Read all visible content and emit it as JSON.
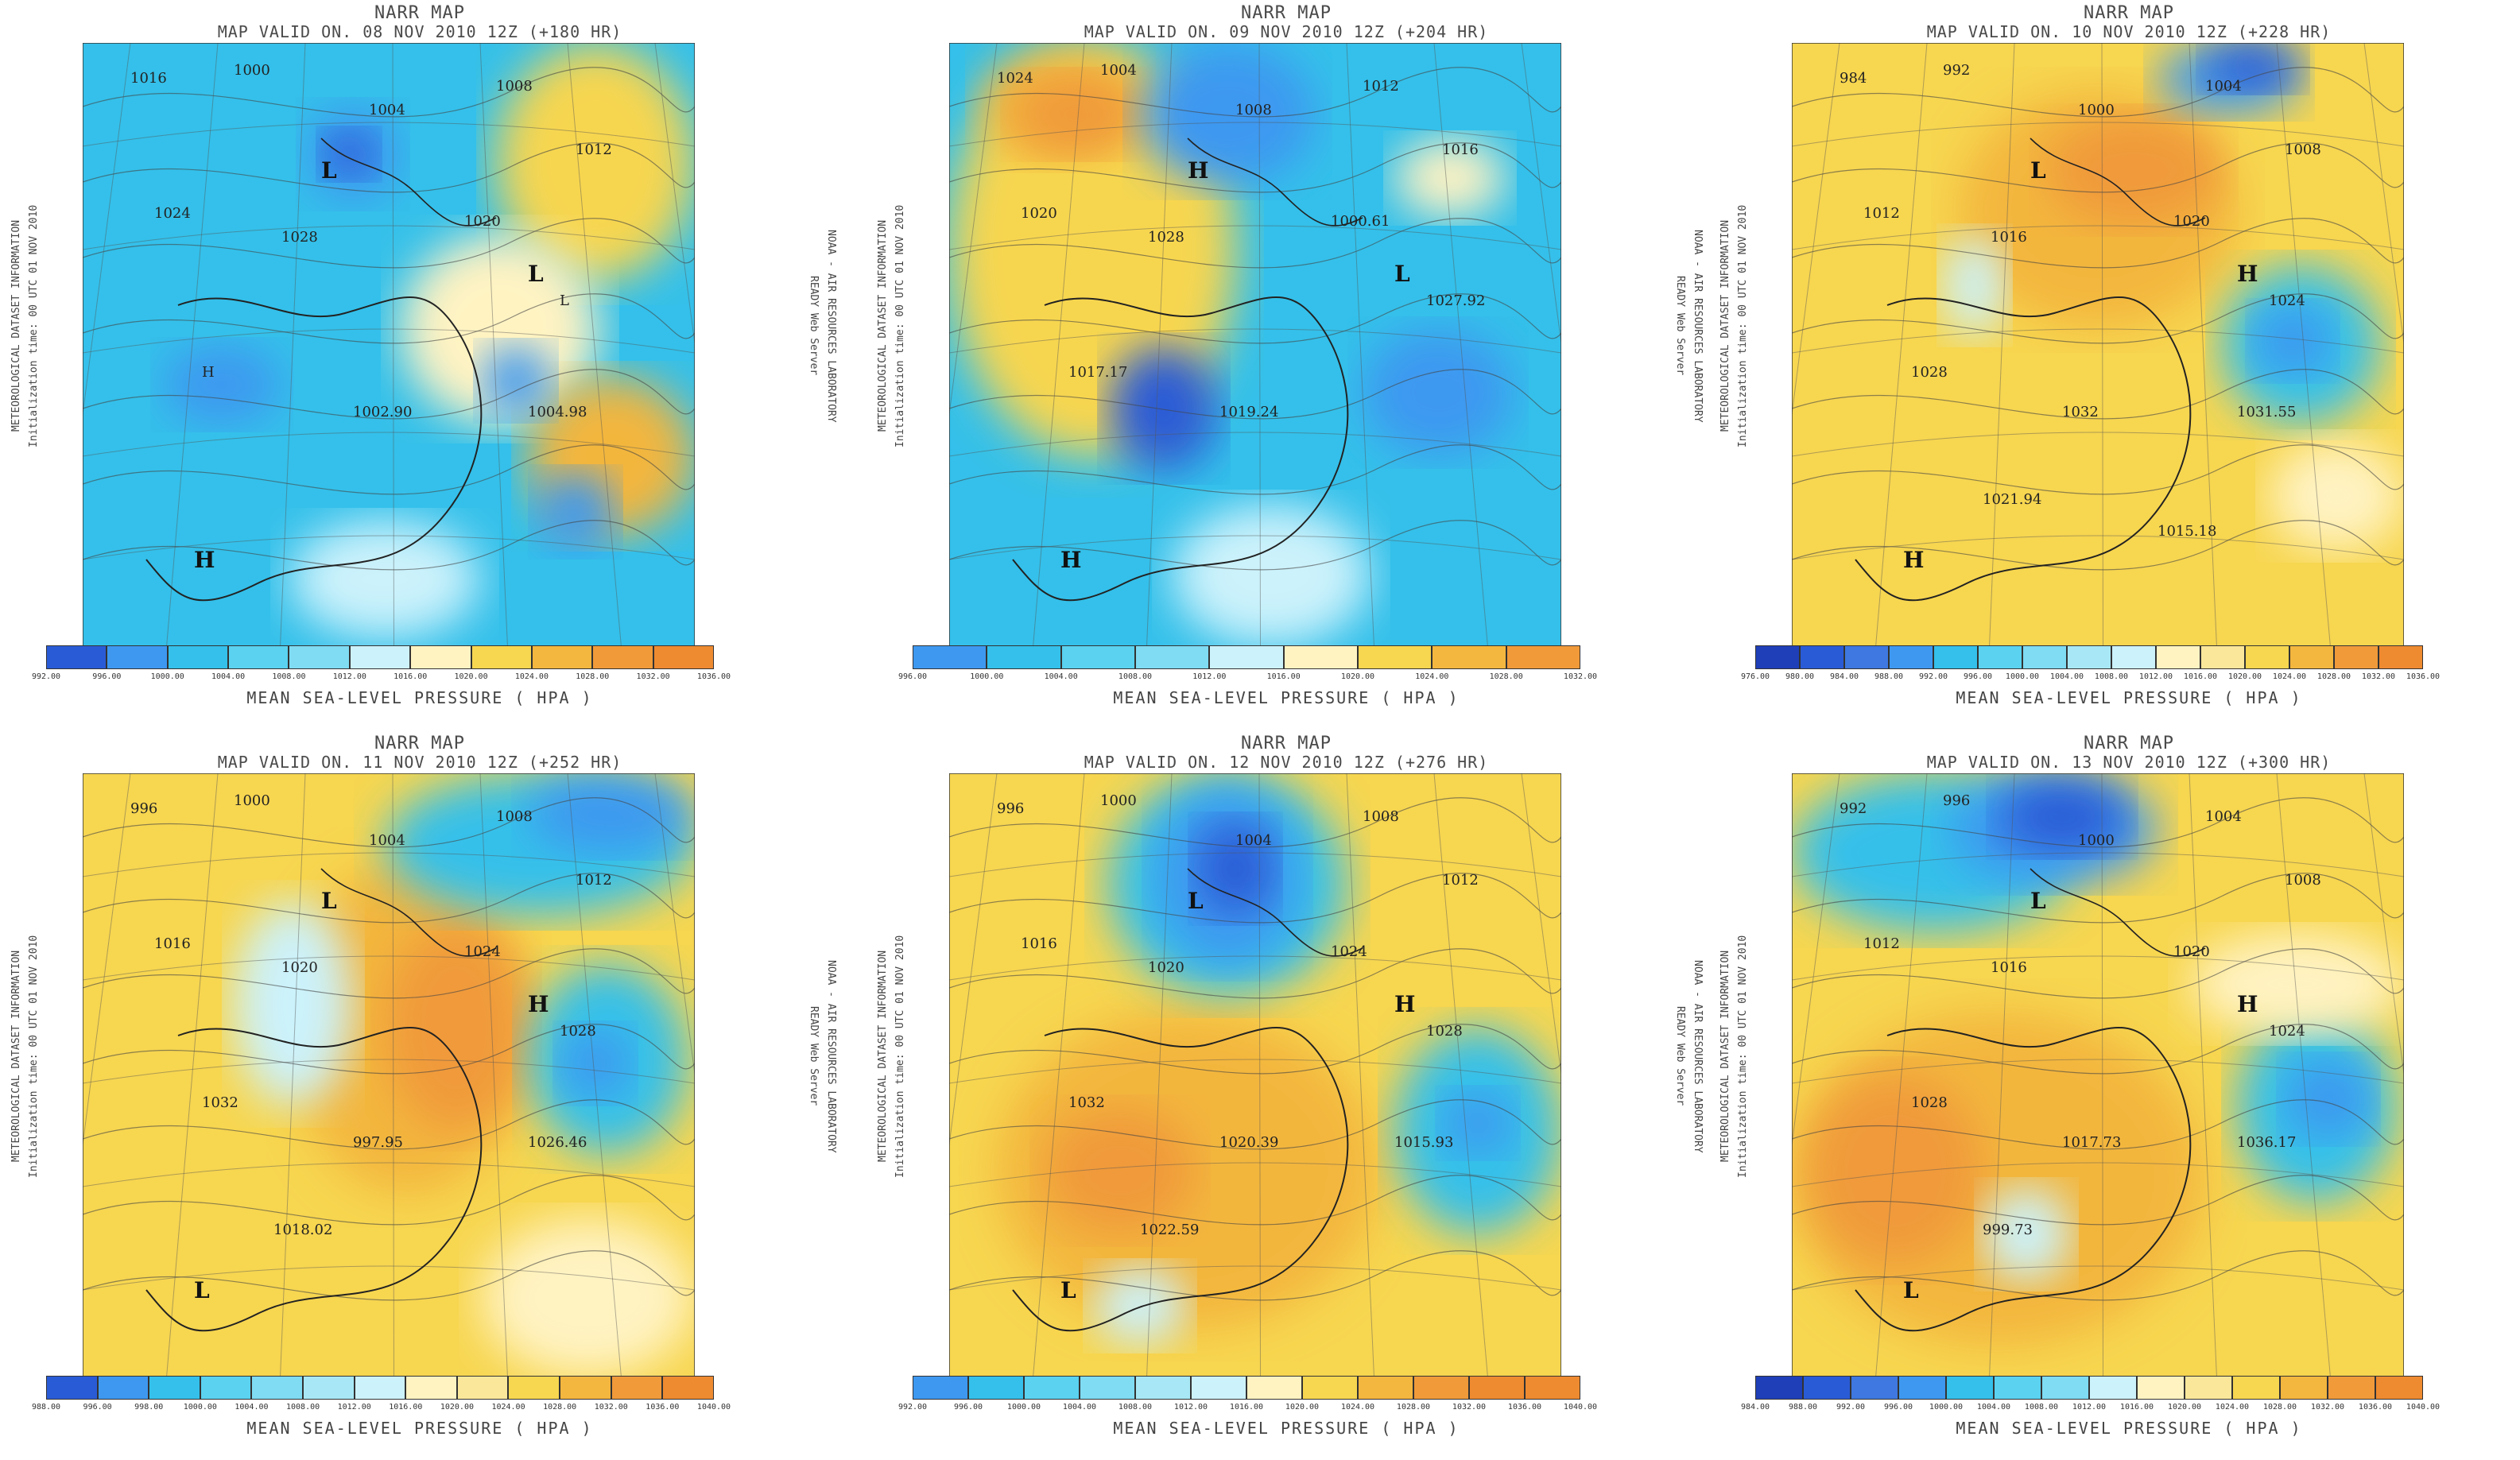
{
  "colors": {
    "deep_blue": "#2a5bd6",
    "blue": "#3e98f0",
    "sky": "#34c0ea",
    "cyan": "#5ad2f0",
    "pale_cyan": "#ccf2fb",
    "pale_yellow": "#fff3c2",
    "yellow": "#f7d650",
    "gold": "#f3b63e",
    "orange": "#f09a3a",
    "contour": "#444444",
    "coast": "#222222"
  },
  "common": {
    "title": "NARR MAP",
    "left_side_1": "METEOROLOGICAL DATASET INFORMATION",
    "left_side_2": "Initialization time: 00 UTC 01 NOV 2010",
    "right_side_1": "NOAA - AIR RESOURCES LABORATORY",
    "right_side_2": "READY Web Server",
    "colorbar_title": "MEAN SEA-LEVEL PRESSURE ( HPA )"
  },
  "panels": [
    {
      "valid": "MAP VALID ON. 08 NOV 2010 12Z (+180 HR)",
      "ticks": [
        "992.00",
        "996.00",
        "1000.00",
        "1004.00",
        "1008.00",
        "1012.00",
        "1016.00",
        "1020.00",
        "1024.00",
        "1028.00",
        "1032.00",
        "1036.00"
      ],
      "tick_colors": [
        "#2a5bd6",
        "#3e98f0",
        "#34c0ea",
        "#5ad2f0",
        "#7fdcf3",
        "#ccf2fb",
        "#fff3c2",
        "#f7d650",
        "#f3b63e",
        "#f09a3a",
        "#ee8a30"
      ],
      "labels": [
        "1016",
        "1000",
        "1004",
        "1008",
        "1012",
        "1024",
        "1028",
        "1020",
        "L",
        "H",
        "1002.90",
        "1004.98"
      ],
      "systems": [
        "L",
        "L",
        "H"
      ]
    },
    {
      "valid": "MAP VALID ON. 09 NOV 2010 12Z (+204 HR)",
      "ticks": [
        "996.00",
        "1000.00",
        "1004.00",
        "1008.00",
        "1012.00",
        "1016.00",
        "1020.00",
        "1024.00",
        "1028.00",
        "1032.00"
      ],
      "tick_colors": [
        "#3e98f0",
        "#34c0ea",
        "#5ad2f0",
        "#7fdcf3",
        "#ccf2fb",
        "#fff3c2",
        "#f7d650",
        "#f3b63e",
        "#f09a3a"
      ],
      "labels": [
        "1024",
        "1004",
        "1008",
        "1012",
        "1016",
        "1020",
        "1028",
        "1000.61",
        "1027.92",
        "1017.17",
        "1019.24"
      ],
      "systems": [
        "H",
        "L",
        "H"
      ]
    },
    {
      "valid": "MAP VALID ON. 10 NOV 2010 12Z (+228 HR)",
      "ticks": [
        "976.00",
        "980.00",
        "984.00",
        "988.00",
        "992.00",
        "996.00",
        "1000.00",
        "1004.00",
        "1008.00",
        "1012.00",
        "1016.00",
        "1020.00",
        "1024.00",
        "1028.00",
        "1032.00",
        "1036.00"
      ],
      "tick_colors": [
        "#1f3fb8",
        "#2a5bd6",
        "#3e78e0",
        "#3e98f0",
        "#34c0ea",
        "#5ad2f0",
        "#7fdcf3",
        "#a8e8f6",
        "#ccf2fb",
        "#fff3c2",
        "#fbe79a",
        "#f7d650",
        "#f3b63e",
        "#f09a3a",
        "#ee8a30"
      ],
      "labels": [
        "984",
        "992",
        "1000",
        "1004",
        "1008",
        "1012",
        "1016",
        "1020",
        "1024",
        "1028",
        "1032",
        "1031.55",
        "1021.94",
        "1015.18"
      ],
      "systems": [
        "L",
        "H",
        "H"
      ]
    },
    {
      "valid": "MAP VALID ON. 11 NOV 2010 12Z (+252 HR)",
      "ticks": [
        "988.00",
        "996.00",
        "998.00",
        "1000.00",
        "1004.00",
        "1008.00",
        "1012.00",
        "1016.00",
        "1020.00",
        "1024.00",
        "1028.00",
        "1032.00",
        "1036.00",
        "1040.00"
      ],
      "tick_colors": [
        "#2a5bd6",
        "#3e98f0",
        "#34c0ea",
        "#5ad2f0",
        "#7fdcf3",
        "#a8e8f6",
        "#ccf2fb",
        "#fff3c2",
        "#fbe79a",
        "#f7d650",
        "#f3b63e",
        "#f09a3a",
        "#ee8a30"
      ],
      "labels": [
        "996",
        "1000",
        "1004",
        "1008",
        "1012",
        "1016",
        "1020",
        "1024",
        "1028",
        "1032",
        "997.95",
        "1026.46",
        "1018.02"
      ],
      "systems": [
        "L",
        "H",
        "L"
      ]
    },
    {
      "valid": "MAP VALID ON. 12 NOV 2010 12Z (+276 HR)",
      "ticks": [
        "992.00",
        "996.00",
        "1000.00",
        "1004.00",
        "1008.00",
        "1012.00",
        "1016.00",
        "1020.00",
        "1024.00",
        "1028.00",
        "1032.00",
        "1036.00",
        "1040.00"
      ],
      "tick_colors": [
        "#3e98f0",
        "#34c0ea",
        "#5ad2f0",
        "#7fdcf3",
        "#a8e8f6",
        "#ccf2fb",
        "#fff3c2",
        "#f7d650",
        "#f3b63e",
        "#f09a3a",
        "#ee8a30",
        "#ee8a30"
      ],
      "labels": [
        "996",
        "1000",
        "1004",
        "1008",
        "1012",
        "1016",
        "1020",
        "1024",
        "1028",
        "1032",
        "1020.39",
        "1015.93",
        "1022.59"
      ],
      "systems": [
        "L",
        "H",
        "L"
      ]
    },
    {
      "valid": "MAP VALID ON. 13 NOV 2010 12Z (+300 HR)",
      "ticks": [
        "984.00",
        "988.00",
        "992.00",
        "996.00",
        "1000.00",
        "1004.00",
        "1008.00",
        "1012.00",
        "1016.00",
        "1020.00",
        "1024.00",
        "1028.00",
        "1032.00",
        "1036.00",
        "1040.00"
      ],
      "tick_colors": [
        "#1f3fb8",
        "#2a5bd6",
        "#3e78e0",
        "#3e98f0",
        "#34c0ea",
        "#5ad2f0",
        "#7fdcf3",
        "#ccf2fb",
        "#fff3c2",
        "#fbe79a",
        "#f7d650",
        "#f3b63e",
        "#f09a3a",
        "#ee8a30"
      ],
      "labels": [
        "992",
        "996",
        "1000",
        "1004",
        "1008",
        "1012",
        "1016",
        "1020",
        "1024",
        "1028",
        "1017.73",
        "1036.17",
        "999.73"
      ],
      "systems": [
        "L",
        "H",
        "L"
      ]
    }
  ]
}
